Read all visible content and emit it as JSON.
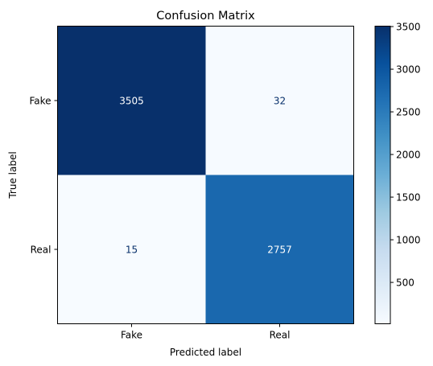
{
  "chart_data": {
    "type": "heatmap",
    "title": "Confusion Matrix",
    "xlabel": "Predicted label",
    "ylabel": "True label",
    "x_categories": [
      "Fake",
      "Real"
    ],
    "y_categories": [
      "Fake",
      "Real"
    ],
    "values": [
      [
        3505,
        32
      ],
      [
        15,
        2757
      ]
    ],
    "colormap": "Blues",
    "colorbar": {
      "min": 15,
      "max": 3505,
      "ticks": [
        500,
        1000,
        1500,
        2000,
        2500,
        3000,
        3500
      ],
      "tick_labels": [
        "500",
        "1000",
        "1500",
        "2000",
        "2500",
        "3000",
        "3500"
      ]
    },
    "text_colors": {
      "dark_cell": "#ffffff",
      "light_cell": "#08306b"
    }
  }
}
